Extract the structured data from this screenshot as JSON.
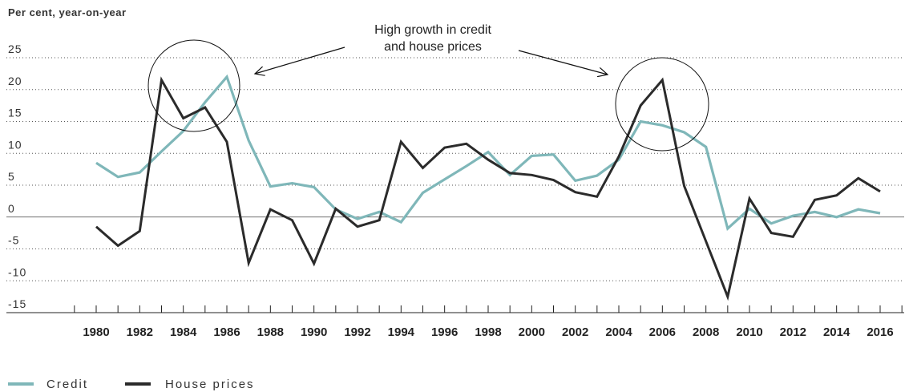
{
  "chart_data": {
    "type": "line",
    "ylabel": "Per cent, year-on-year",
    "ylim": [
      -15,
      25
    ],
    "yticks": [
      25,
      20,
      15,
      10,
      5,
      0,
      -5,
      -10,
      -15
    ],
    "xlim": [
      1979.5,
      2016.5
    ],
    "xtick_labels": [
      "1980",
      "1982",
      "1984",
      "1986",
      "1988",
      "1990",
      "1992",
      "1994",
      "1996",
      "1998",
      "2000",
      "2002",
      "2004",
      "2006",
      "2008",
      "2010",
      "2012",
      "2014",
      "2016"
    ],
    "grid": true,
    "legend_placement": "bottom-left",
    "annotation": {
      "line1": "High growth in credit",
      "line2": "and house prices"
    },
    "series": [
      {
        "name": "Credit",
        "color": "#7fb7b9",
        "x": [
          1980,
          1981,
          1982,
          1983,
          1984,
          1985,
          1986,
          1987,
          1988,
          1989,
          1990,
          1991,
          1992,
          1993,
          1994,
          1995,
          1996,
          1997,
          1998,
          1999,
          2000,
          2001,
          2002,
          2003,
          2004,
          2005,
          2006,
          2007,
          2008,
          2009,
          2010,
          2011,
          2012,
          2013,
          2014,
          2015,
          2016
        ],
        "values": [
          8.5,
          6.3,
          7,
          10.3,
          13.5,
          18,
          22,
          12,
          4.8,
          5.3,
          4.7,
          1.2,
          -0.3,
          0.8,
          -0.8,
          3.8,
          5.9,
          8,
          10.2,
          6.6,
          9.6,
          9.8,
          5.7,
          6.5,
          9,
          15,
          14.4,
          13.3,
          11,
          -1.8,
          1.3,
          -1,
          0.2,
          0.8,
          0,
          1.2,
          0.6
        ]
      },
      {
        "name": "House prices",
        "color": "#2b2b2b",
        "x": [
          1980,
          1981,
          1982,
          1983,
          1984,
          1985,
          1986,
          1987,
          1988,
          1989,
          1990,
          1991,
          1992,
          1993,
          1994,
          1995,
          1996,
          1997,
          1998,
          1999,
          2000,
          2001,
          2002,
          2003,
          2004,
          2005,
          2006,
          2007,
          2008,
          2009,
          2010,
          2011,
          2012,
          2013,
          2014,
          2015,
          2016
        ],
        "values": [
          -1.5,
          -4.5,
          -2.2,
          21.5,
          15.5,
          17.2,
          11.8,
          -7.2,
          1.2,
          -0.5,
          -7.3,
          1.3,
          -1.5,
          -0.5,
          11.8,
          7.7,
          10.9,
          11.5,
          9,
          6.9,
          6.6,
          5.8,
          3.9,
          3.2,
          9.5,
          17.5,
          21.5,
          4.9,
          -3.8,
          -12.5,
          2.9,
          -2.5,
          -3.1,
          2.7,
          3.4,
          6.1,
          4
        ]
      }
    ]
  }
}
